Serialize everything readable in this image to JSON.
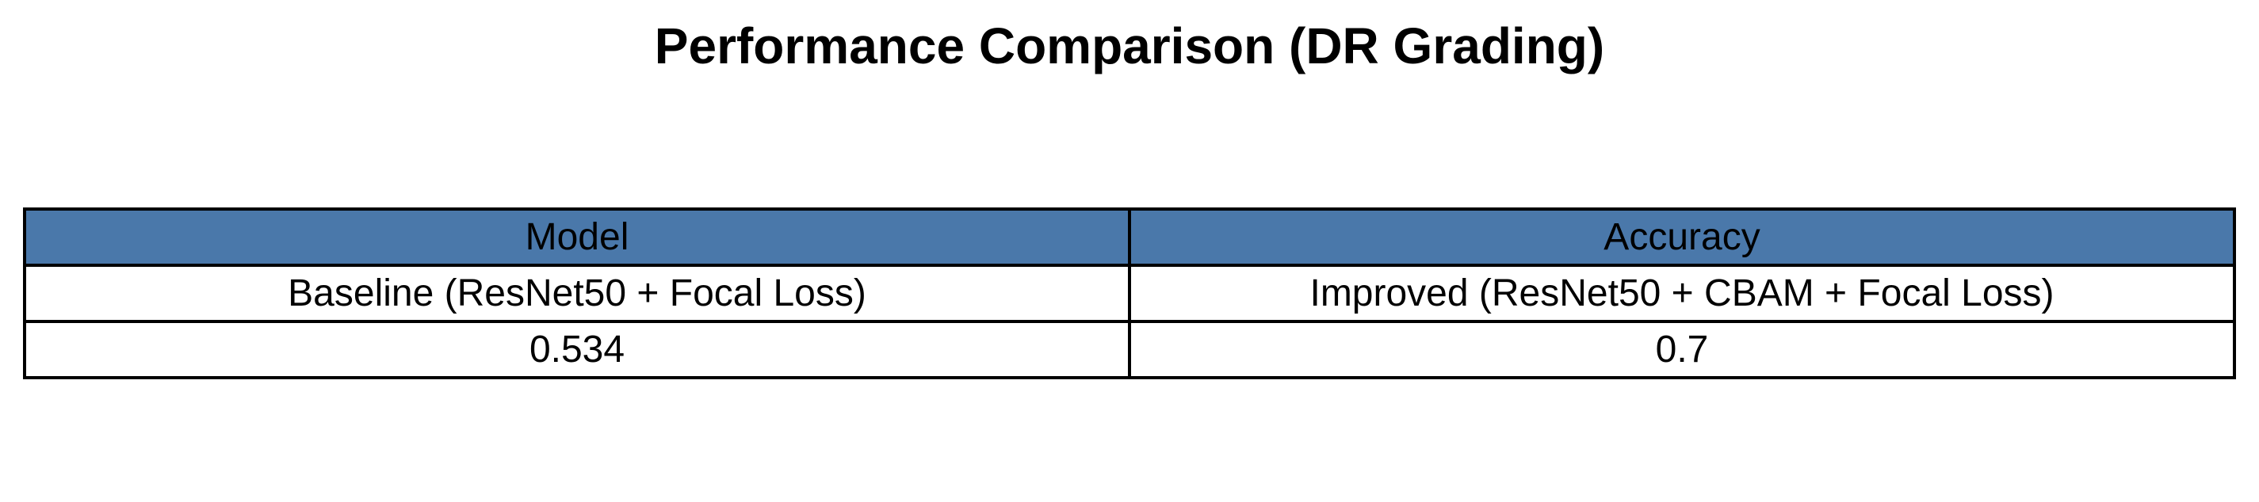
{
  "chart_data": {
    "type": "table",
    "title": "Performance Comparison (DR Grading)",
    "header_color": "#4a78aa",
    "columns": [
      "Model",
      "Accuracy"
    ],
    "rows": [
      [
        "Baseline (ResNet50 + Focal Loss)",
        "Improved (ResNet50 + CBAM + Focal Loss)"
      ],
      [
        "0.534",
        "0.7"
      ]
    ]
  }
}
